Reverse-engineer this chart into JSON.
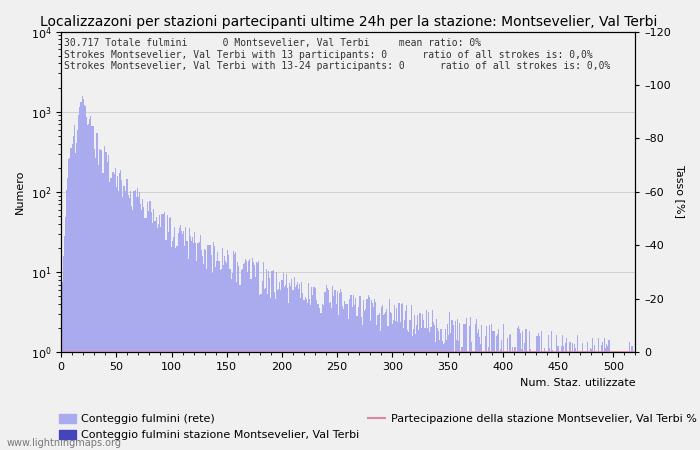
{
  "title": "Localizzazoni per stazioni partecipanti ultime 24h per la stazione: Montsevelier, Val Terbi",
  "ylabel_left": "Numero",
  "ylabel_right": "Tasso [%]",
  "annotation_lines": [
    "30.717 Totale fulmini      0 Montsevelier, Val Terbi     mean ratio: 0%",
    "Strokes Montsevelier, Val Terbi with 13 participants: 0      ratio of all strokes is: 0,0%",
    "Strokes Montsevelier, Val Terbi with 13-24 participants: 0      ratio of all strokes is: 0,0%"
  ],
  "xmin": 0,
  "xmax": 520,
  "ymin": 1.0,
  "ymax": 10000,
  "y2min": 0,
  "y2max": 120,
  "y2ticks": [
    0,
    20,
    40,
    60,
    80,
    100,
    120
  ],
  "bar_color_light": "#aaaaee",
  "bar_color_dark": "#4444bb",
  "line_color": "#dd88aa",
  "background_color": "#f0f0f0",
  "watermark": "www.lightningmaps.org",
  "legend_labels": [
    "Conteggio fulmini (rete)",
    "Conteggio fulmini stazione Montsevelier, Val Terbi",
    "Partecipazione della stazione Montsevelier, Val Terbi %"
  ],
  "xlabel_bottom": "Num. Staz. utilizzate",
  "title_fontsize": 10,
  "annotation_fontsize": 7,
  "axis_fontsize": 8,
  "legend_fontsize": 8
}
